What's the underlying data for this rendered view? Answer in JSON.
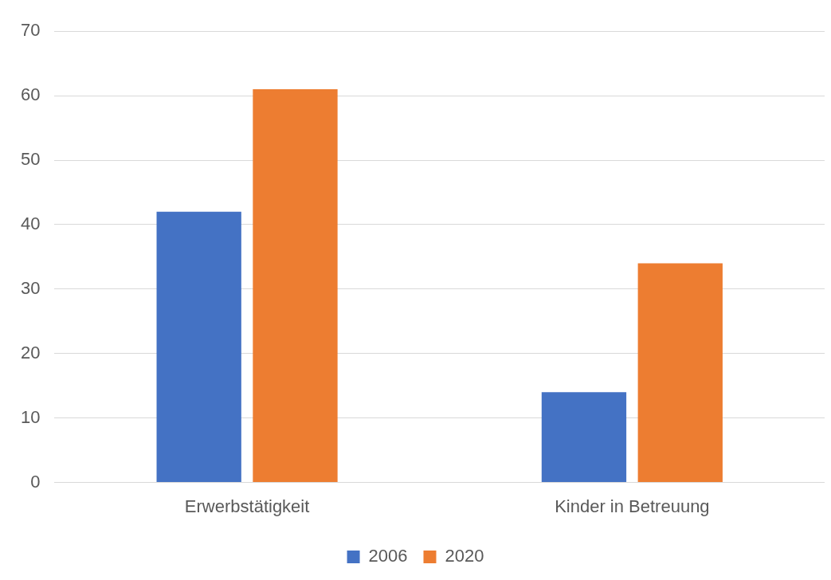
{
  "chart_data": {
    "type": "bar",
    "categories": [
      "Erwerbstätigkeit",
      "Kinder in Betreuung"
    ],
    "series": [
      {
        "name": "2006",
        "color": "#4472c4",
        "values": [
          42,
          14
        ]
      },
      {
        "name": "2020",
        "color": "#ed7d31",
        "values": [
          61,
          34
        ]
      }
    ],
    "ylim": [
      0,
      70
    ],
    "yticks": [
      0,
      10,
      20,
      30,
      40,
      50,
      60,
      70
    ],
    "grid": "y",
    "legend": "bottom"
  }
}
